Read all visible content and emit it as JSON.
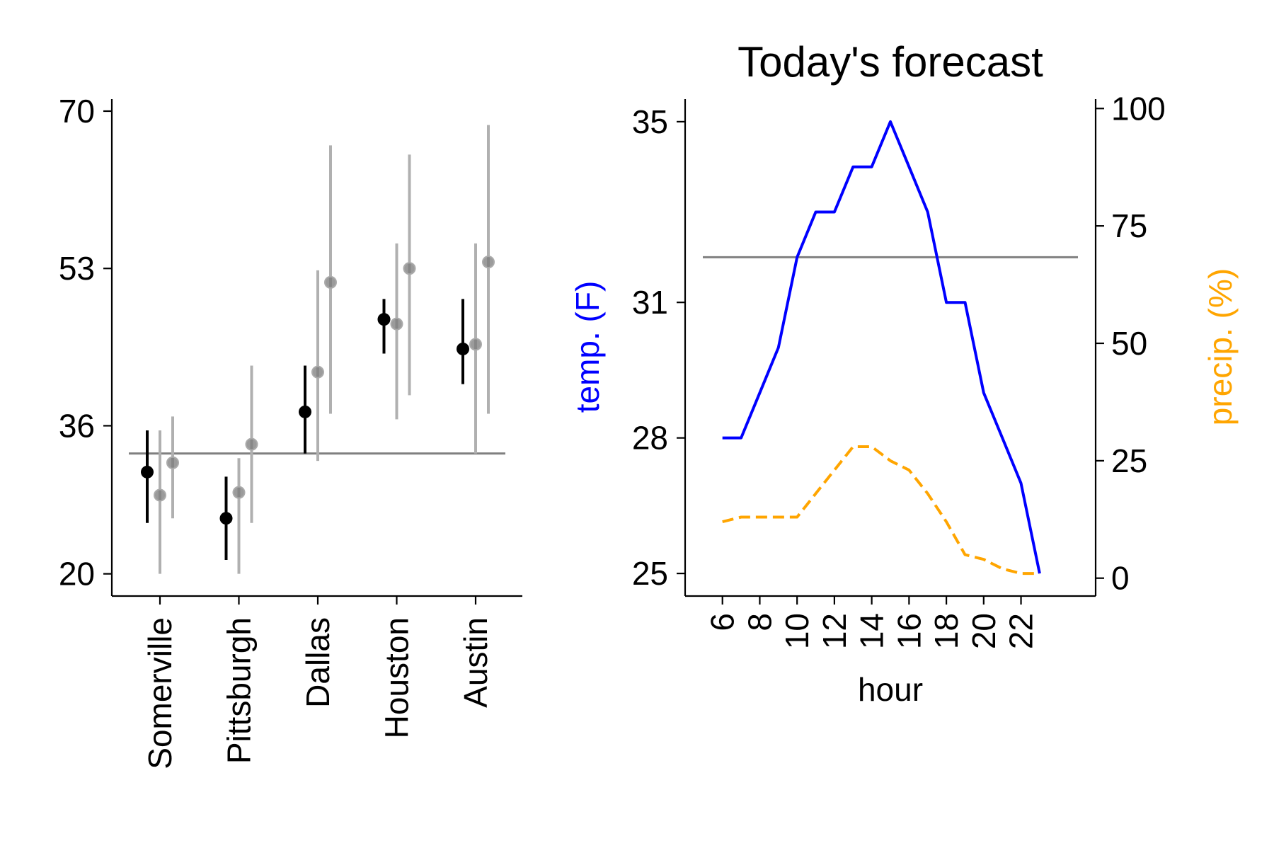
{
  "chart_data": [
    {
      "type": "scatter",
      "subtype": "point-with-errorbars",
      "title": "",
      "xlabel": "",
      "ylabel": "",
      "categories": [
        "Somerville",
        "Pittsburgh",
        "Dallas",
        "Houston",
        "Austin"
      ],
      "yticks": [
        20,
        36,
        53,
        70
      ],
      "ylim": [
        17.6,
        71.3
      ],
      "reference_line": 33.0,
      "grid": false,
      "series": [
        {
          "color": "#000000",
          "values": [
            31.0,
            26.0,
            37.5,
            47.5,
            44.3
          ],
          "low": [
            25.5,
            21.5,
            33.0,
            43.8,
            40.5
          ],
          "high": [
            35.5,
            30.5,
            42.5,
            49.7,
            49.7
          ]
        },
        {
          "color": "#808080",
          "values": [
            28.5,
            28.8,
            41.8,
            47.0,
            44.8
          ],
          "low": [
            20.0,
            20.0,
            32.2,
            36.7,
            33.0
          ],
          "high": [
            35.5,
            32.5,
            52.8,
            55.7,
            55.7
          ]
        },
        {
          "color": "#808080",
          "values": [
            32.0,
            34.0,
            51.5,
            53.0,
            53.7
          ],
          "low": [
            26.0,
            25.5,
            37.3,
            39.3,
            37.3
          ],
          "high": [
            37.0,
            42.5,
            66.3,
            65.3,
            68.5
          ]
        }
      ]
    },
    {
      "type": "line",
      "title": "Today's forecast",
      "xlabel": "hour",
      "ylabel": "temp. (F)",
      "ylabel_right": "precip. (%)",
      "xticks": [
        6,
        8,
        10,
        12,
        14,
        16,
        18,
        20,
        22
      ],
      "xlim": [
        4.0,
        26.0
      ],
      "ylim": [
        24.5,
        35.5
      ],
      "ylim_right": [
        -2,
        102
      ],
      "yticks": [
        25,
        28,
        31,
        35
      ],
      "yticks_right": [
        0,
        25,
        50,
        75,
        100
      ],
      "reference_line": 32.0,
      "grid": false,
      "series": [
        {
          "name": "temp. (F)",
          "axis": "left",
          "color": "#0000ff",
          "style": "solid",
          "x": [
            6,
            7,
            8,
            9,
            10,
            11,
            12,
            13,
            14,
            15,
            16,
            17,
            18,
            19,
            20,
            21,
            22,
            23
          ],
          "y": [
            28,
            28,
            29,
            30,
            32,
            33,
            33,
            34,
            34,
            35,
            34,
            33,
            31,
            31,
            29,
            28,
            27,
            25
          ]
        },
        {
          "name": "precip. (%)",
          "axis": "right",
          "color": "#ffa500",
          "style": "dashed",
          "x": [
            6,
            7,
            8,
            9,
            10,
            11,
            12,
            13,
            14,
            15,
            16,
            17,
            18,
            19,
            20,
            21,
            22,
            23
          ],
          "y": [
            12,
            13,
            13,
            13,
            13,
            18,
            23,
            28,
            28,
            25,
            23,
            18,
            12,
            5,
            4,
            2,
            1,
            1
          ]
        }
      ]
    }
  ]
}
